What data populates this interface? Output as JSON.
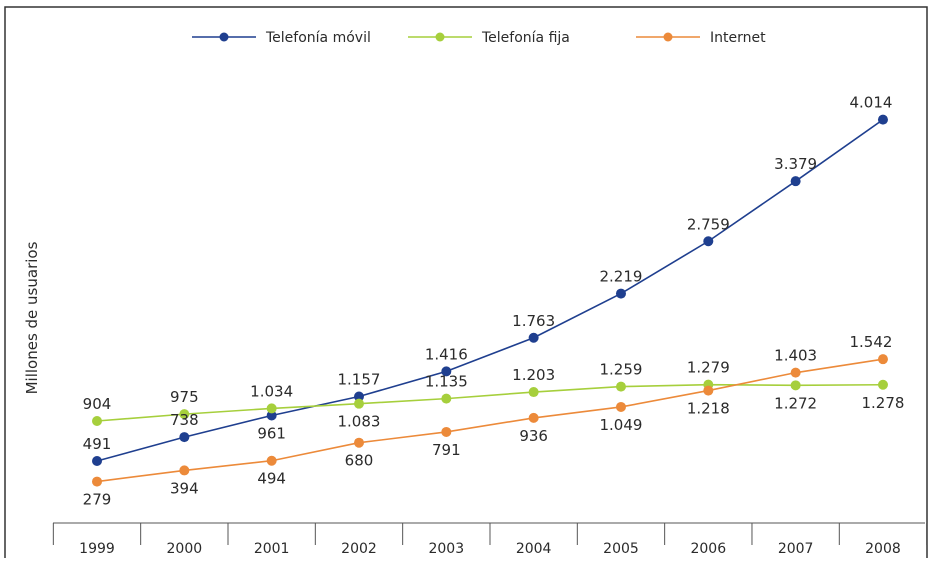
{
  "chart_data": {
    "type": "line",
    "title": "",
    "xlabel": "",
    "ylabel": "Millones de usuarios",
    "categories": [
      "1999",
      "2000",
      "2001",
      "2002",
      "2003",
      "2004",
      "2005",
      "2006",
      "2007",
      "2008"
    ],
    "ylim": [
      0,
      4500
    ],
    "grid": false,
    "legend_position": "top",
    "series": [
      {
        "name": "Telefonía móvil",
        "color": "#1f3f8f",
        "values": [
          491,
          738,
          961,
          1157,
          1416,
          1763,
          2219,
          2759,
          3379,
          4014
        ],
        "labels": [
          "491",
          "738",
          "961",
          "1.157",
          "1.416",
          "1.763",
          "2.219",
          "2.759",
          "3.379",
          "4.014"
        ],
        "label_pos": [
          "above",
          "above",
          "below",
          "above",
          "above",
          "above",
          "above",
          "above",
          "above",
          "above"
        ]
      },
      {
        "name": "Telefonía fija",
        "color": "#a6cf3c",
        "values": [
          904,
          975,
          1034,
          1083,
          1135,
          1203,
          1259,
          1279,
          1272,
          1278
        ],
        "labels": [
          "904",
          "975",
          "1.034",
          "1.083",
          "1.135",
          "1.203",
          "1.259",
          "1.279",
          "1.272",
          "1.278"
        ],
        "label_pos": [
          "above",
          "above",
          "above",
          "below",
          "above",
          "above",
          "above",
          "above",
          "below",
          "below"
        ]
      },
      {
        "name": "Internet",
        "color": "#ec8a3a",
        "values": [
          279,
          394,
          494,
          680,
          791,
          936,
          1049,
          1218,
          1403,
          1542
        ],
        "labels": [
          "279",
          "394",
          "494",
          "680",
          "791",
          "936",
          "1.049",
          "1.218",
          "1.403",
          "1.542"
        ],
        "label_pos": [
          "below",
          "below",
          "below",
          "below",
          "below",
          "below",
          "below",
          "below",
          "above",
          "above"
        ]
      }
    ]
  }
}
